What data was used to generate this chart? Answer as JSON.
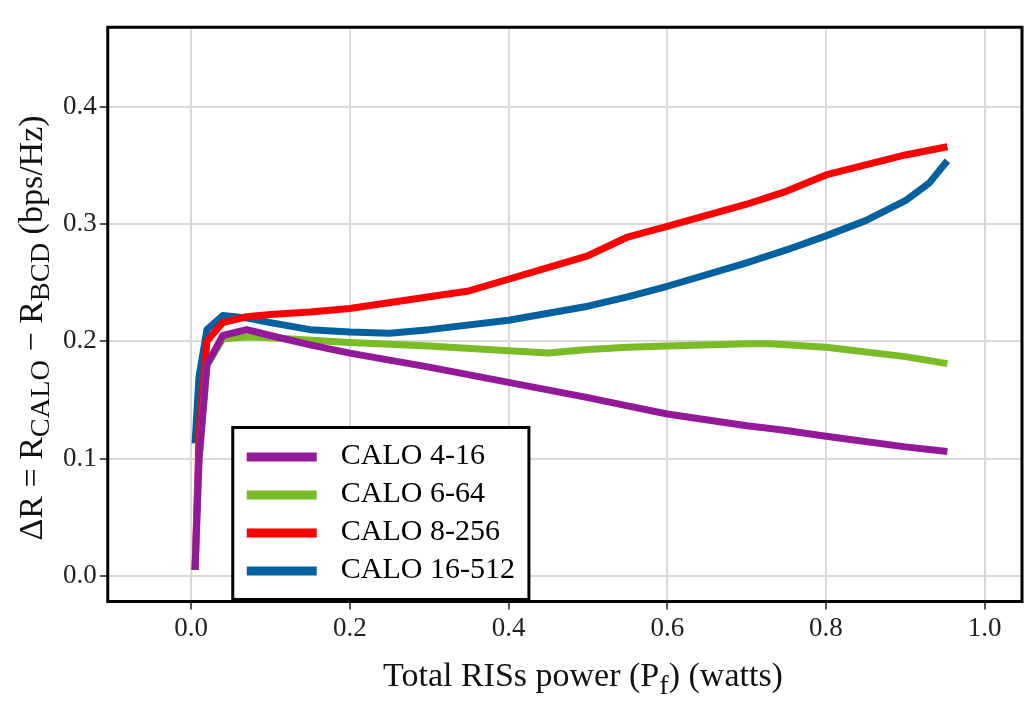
{
  "chart_data": {
    "type": "line",
    "xlabel": "Total RISs power (P$_{f}$) (watts)",
    "ylabel": "ΔR = R$_{CALO}$ − R$_{BCD}$ (bps/Hz)",
    "xlim": [
      -0.105,
      1.047
    ],
    "ylim": [
      -0.022,
      0.468
    ],
    "xticks": [
      {
        "value": 0,
        "label": "0.0"
      },
      0.2,
      0.4,
      0.6,
      0.8,
      {
        "value": 1,
        "label": "1.0"
      }
    ],
    "yticks": [
      {
        "value": 0,
        "label": "0.0"
      },
      0.1,
      0.2,
      0.3,
      0.4
    ],
    "grid": true,
    "legend": "bottom left",
    "marker": "none",
    "line_style": "solid",
    "series": [
      {
        "name": "CALO 4-16",
        "color": "#93199a",
        "x": [
          0.005,
          0.01,
          0.02,
          0.04,
          0.07,
          0.1,
          0.15,
          0.2,
          0.3,
          0.4,
          0.5,
          0.55,
          0.6,
          0.7,
          0.75,
          0.8,
          0.9,
          0.953
        ],
        "values": [
          0.005,
          0.1,
          0.18,
          0.205,
          0.21,
          0.205,
          0.197,
          0.19,
          0.178,
          0.165,
          0.152,
          0.145,
          0.138,
          0.128,
          0.124,
          0.119,
          0.11,
          0.106
        ]
      },
      {
        "name": "CALO 6-64",
        "color": "#79bc25",
        "x": [
          0.005,
          0.01,
          0.02,
          0.04,
          0.07,
          0.1,
          0.2,
          0.3,
          0.4,
          0.45,
          0.5,
          0.55,
          0.6,
          0.7,
          0.73,
          0.8,
          0.9,
          0.953
        ],
        "values": [
          0.005,
          0.1,
          0.18,
          0.202,
          0.204,
          0.203,
          0.199,
          0.196,
          0.192,
          0.19,
          0.193,
          0.195,
          0.196,
          0.198,
          0.198,
          0.195,
          0.187,
          0.181
        ]
      },
      {
        "name": "CALO 8-256",
        "color": "#ff0000",
        "x": [
          0.005,
          0.01,
          0.02,
          0.04,
          0.07,
          0.1,
          0.15,
          0.2,
          0.3,
          0.35,
          0.4,
          0.5,
          0.55,
          0.6,
          0.7,
          0.75,
          0.8,
          0.9,
          0.953
        ],
        "values": [
          0.005,
          0.12,
          0.2,
          0.216,
          0.221,
          0.223,
          0.225,
          0.228,
          0.238,
          0.243,
          0.253,
          0.273,
          0.289,
          0.298,
          0.317,
          0.328,
          0.342,
          0.359,
          0.366
        ]
      },
      {
        "name": "CALO 16-512",
        "color": "#0461a0",
        "x": [
          0.005,
          0.01,
          0.02,
          0.04,
          0.07,
          0.1,
          0.15,
          0.2,
          0.25,
          0.3,
          0.4,
          0.5,
          0.55,
          0.6,
          0.7,
          0.75,
          0.8,
          0.85,
          0.9,
          0.93,
          0.953
        ],
        "values": [
          0.113,
          0.17,
          0.21,
          0.222,
          0.22,
          0.216,
          0.21,
          0.208,
          0.207,
          0.21,
          0.218,
          0.23,
          0.238,
          0.247,
          0.267,
          0.278,
          0.29,
          0.303,
          0.32,
          0.335,
          0.354
        ]
      }
    ]
  }
}
